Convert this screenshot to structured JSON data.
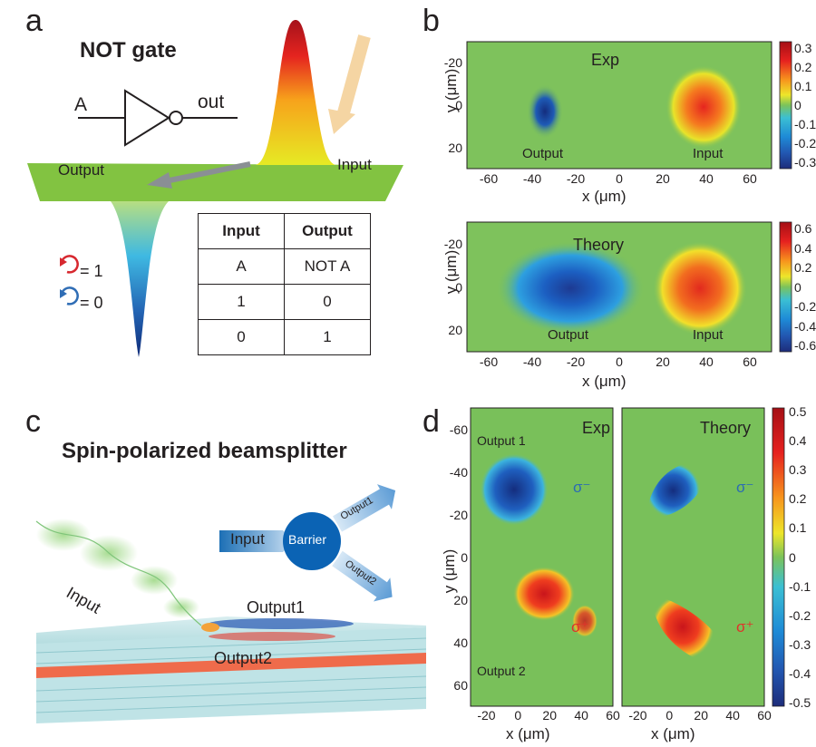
{
  "panels": {
    "a": {
      "letter": "a",
      "title": "NOT gate",
      "gate_input": "A",
      "gate_output": "out",
      "label_output": "Output",
      "label_input": "Input",
      "legend": [
        {
          "text": "= 1",
          "color": "#d7282f"
        },
        {
          "text": "= 0",
          "color": "#2f6db5"
        }
      ],
      "truth_table": {
        "headers": [
          "Input",
          "Output"
        ],
        "rows": [
          [
            "A",
            "NOT A"
          ],
          [
            "1",
            "0"
          ],
          [
            "0",
            "1"
          ]
        ]
      }
    },
    "b": {
      "letter": "b"
    },
    "c": {
      "letter": "c",
      "title": "Spin-polarized beamsplitter",
      "diagram_input": "Input",
      "barrier": "Barrier",
      "output1_arrow": "Output1",
      "output2_arrow": "Output2",
      "beam_input": "Input",
      "beam_output1": "Output1",
      "beam_output2": "Output2"
    },
    "d": {
      "letter": "d"
    }
  },
  "chart_data": [
    {
      "type": "heatmap",
      "panel": "b-top",
      "title": "Exp",
      "xlabel": "x (μm)",
      "ylabel": "y (μm)",
      "xlim": [
        -70,
        70
      ],
      "ylim": [
        30,
        -30
      ],
      "xticks": [
        "-60",
        "-40",
        "-20",
        "0",
        "20",
        "40",
        "60"
      ],
      "yticks": [
        "-20",
        "0",
        "20"
      ],
      "annotations": [
        "Output",
        "Input"
      ],
      "colorbar_ticks": [
        "0.3",
        "0.2",
        "0.1",
        "0",
        "-0.1",
        "-0.2",
        "-0.3"
      ],
      "clim": [
        -0.3,
        0.3
      ]
    },
    {
      "type": "heatmap",
      "panel": "b-bottom",
      "title": "Theory",
      "xlabel": "x (μm)",
      "ylabel": "y (μm)",
      "xlim": [
        -70,
        70
      ],
      "ylim": [
        30,
        -30
      ],
      "xticks": [
        "-60",
        "-40",
        "-20",
        "0",
        "20",
        "40",
        "60"
      ],
      "yticks": [
        "-20",
        "0",
        "20"
      ],
      "annotations": [
        "Output",
        "Input"
      ],
      "colorbar_ticks": [
        "0.6",
        "0.4",
        "0.2",
        "0",
        "-0.2",
        "-0.4",
        "-0.6"
      ],
      "clim": [
        -0.6,
        0.6
      ]
    },
    {
      "type": "heatmap",
      "panel": "d-left",
      "title": "Exp",
      "xlabel": "x (μm)",
      "ylabel": "y (μm)",
      "xlim": [
        -30,
        60
      ],
      "ylim": [
        70,
        -70
      ],
      "xticks": [
        "-20",
        "0",
        "20",
        "40",
        "60"
      ],
      "yticks": [
        "-60",
        "-40",
        "-20",
        "0",
        "20",
        "40",
        "60"
      ],
      "annotations": [
        "Output 1",
        "Output 2",
        "σ⁻",
        "σ⁺"
      ]
    },
    {
      "type": "heatmap",
      "panel": "d-right",
      "title": "Theory",
      "xlabel": "x (μm)",
      "xlim": [
        -30,
        60
      ],
      "ylim": [
        70,
        -70
      ],
      "xticks": [
        "-20",
        "0",
        "20",
        "40",
        "60"
      ],
      "annotations": [
        "σ⁻",
        "σ⁺"
      ],
      "colorbar_ticks": [
        "0.5",
        "0.4",
        "0.3",
        "0.2",
        "0.1",
        "0",
        "-0.1",
        "-0.2",
        "-0.3",
        "-0.4",
        "-0.5"
      ],
      "clim": [
        -0.5,
        0.5
      ]
    }
  ],
  "colors": {
    "background": "#79c05a",
    "positive": "#e8241f",
    "negative": "#1d3f9a"
  }
}
